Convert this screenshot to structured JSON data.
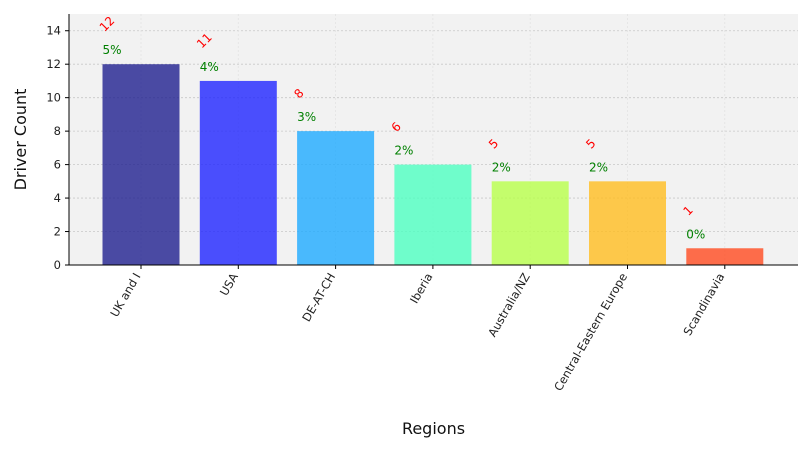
{
  "chart_data": {
    "type": "bar",
    "categories": [
      "UK and I",
      "USA",
      "DE-AT-CH",
      "Iberia",
      "Australia/NZ",
      "Central-Eastern Europe",
      "Scandinavia"
    ],
    "values": [
      12,
      11,
      8,
      6,
      5,
      5,
      1
    ],
    "count_labels": [
      "12",
      "11",
      "8",
      "6",
      "5",
      "5",
      "1"
    ],
    "percent_labels": [
      "5%",
      "4%",
      "3%",
      "2%",
      "2%",
      "2%",
      "0%"
    ],
    "colors": [
      "#1f1f8f",
      "#1f24ff",
      "#1eaaff",
      "#4dffc0",
      "#b8ff4a",
      "#ffbd1f",
      "#ff4a1f"
    ],
    "count_label_color": "#ff0000",
    "percent_label_color": "#008000",
    "xlabel": "Regions",
    "ylabel": "Driver Count",
    "ylim": [
      0,
      15
    ],
    "yticks": [
      0,
      2,
      4,
      6,
      8,
      10,
      12,
      14
    ],
    "grid": true,
    "background_color": "#f2f2f2"
  }
}
